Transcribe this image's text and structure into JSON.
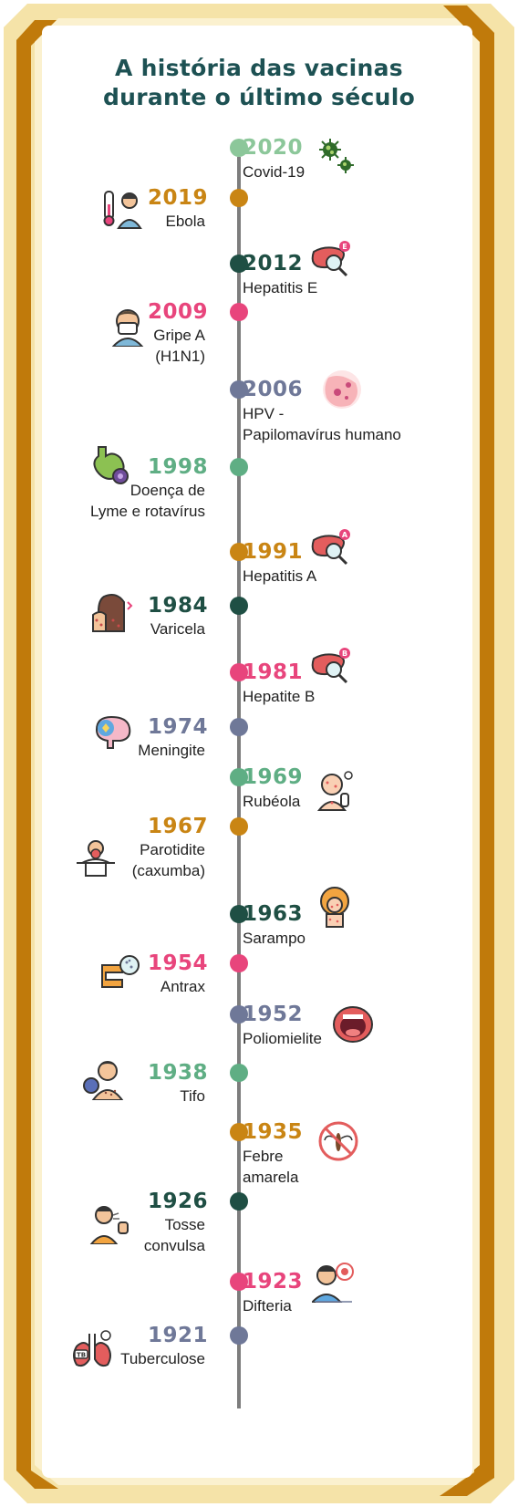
{
  "title_line1": "A história das vacinas",
  "title_line2": "durante o último século",
  "colors": {
    "light_green": "#8cc79a",
    "orange": "#c98514",
    "dark_green": "#1f4f44",
    "pink": "#e8457c",
    "slate": "#6f7898",
    "mint": "#5fae84",
    "title": "#1d5153",
    "frame_outer": "#f5e3a8",
    "frame_dark": "#c07a0b"
  },
  "events": [
    {
      "year": "2020",
      "label": "Covid-19",
      "icon": "virus-icon"
    },
    {
      "year": "2019",
      "label": "Ebola",
      "icon": "fever-patient-icon"
    },
    {
      "year": "2012",
      "label": "Hepatitis E",
      "icon": "liver-e-icon"
    },
    {
      "year": "2009",
      "label": "Gripe A\n(H1N1)",
      "icon": "sneezing-person-icon"
    },
    {
      "year": "2006",
      "label": "HPV -\nPapilomavírus humano",
      "icon": "hpv-cells-icon"
    },
    {
      "year": "1998",
      "label": "Doença de\nLyme e rotavírus",
      "icon": "stomach-virus-icon"
    },
    {
      "year": "1991",
      "label": "Hepatitis A",
      "icon": "liver-a-icon"
    },
    {
      "year": "1984",
      "label": "Varicela",
      "icon": "itchy-skin-icon"
    },
    {
      "year": "1981",
      "label": "Hepatite B",
      "icon": "liver-b-icon"
    },
    {
      "year": "1974",
      "label": "Meningite",
      "icon": "brain-icon"
    },
    {
      "year": "1969",
      "label": "Rubéola",
      "icon": "baby-rash-icon"
    },
    {
      "year": "1967",
      "label": "Parotidite\n(caxumba)",
      "icon": "mumps-person-icon"
    },
    {
      "year": "1963",
      "label": "Sarampo",
      "icon": "measles-person-icon"
    },
    {
      "year": "1954",
      "label": "Antrax",
      "icon": "intestine-bacteria-icon"
    },
    {
      "year": "1952",
      "label": "Poliomielite",
      "icon": "open-mouth-icon"
    },
    {
      "year": "1938",
      "label": "Tifo",
      "icon": "typhus-person-icon"
    },
    {
      "year": "1935",
      "label": "Febre\namarela",
      "icon": "no-mosquito-icon"
    },
    {
      "year": "1926",
      "label": "Tosse\nconvulsa",
      "icon": "coughing-man-icon"
    },
    {
      "year": "1923",
      "label": "Difteria",
      "icon": "throat-virus-icon"
    },
    {
      "year": "1921",
      "label": "Tuberculose",
      "icon": "tb-lungs-icon"
    }
  ]
}
